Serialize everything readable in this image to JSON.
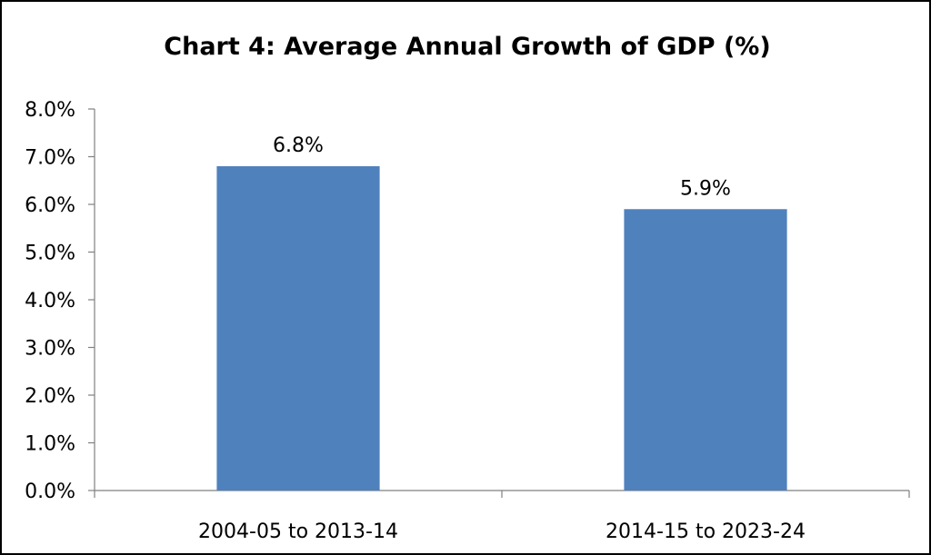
{
  "chart_data": {
    "type": "bar",
    "title": "Chart 4: Average Annual Growth of GDP (%)",
    "categories": [
      "2004-05 to 2013-14",
      "2014-15 to 2023-24"
    ],
    "values": [
      6.8,
      5.9
    ],
    "data_labels": [
      "6.8%",
      "5.9%"
    ],
    "ylim": [
      0,
      8
    ],
    "yticks": [
      "0.0%",
      "1.0%",
      "2.0%",
      "3.0%",
      "4.0%",
      "5.0%",
      "6.0%",
      "7.0%",
      "8.0%"
    ],
    "xlabel": "",
    "ylabel": "",
    "grid": false,
    "legend": "none",
    "bar_color": "#4f81bd",
    "border_color": "#000000"
  }
}
